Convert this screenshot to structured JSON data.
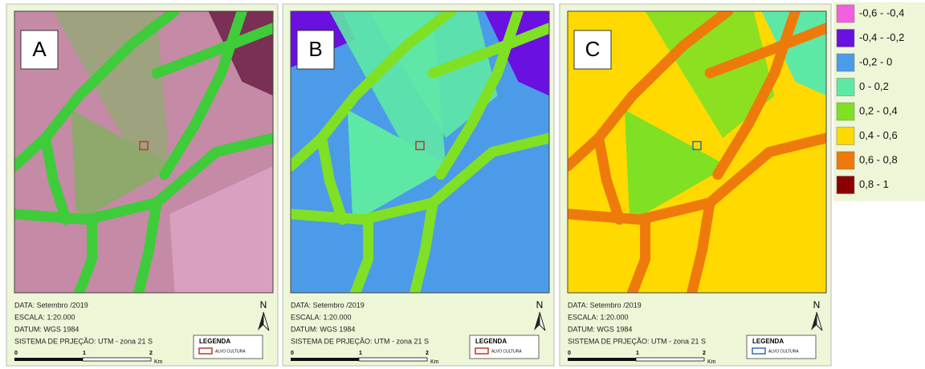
{
  "panels": [
    {
      "label": "A",
      "date": "DATA: Setembro /2019",
      "scale_text": "ESCALA: 1:20.000",
      "datum": "DATUM: WGS 1984",
      "projection": "SISTEMA DE PRJEÇÃO: UTM - zona 21 S",
      "north": "N",
      "legend_title": "LEGENDA",
      "legend_item": "ALVO CULTURA",
      "scale_ticks": [
        "0",
        "1",
        "2"
      ],
      "scale_unit": "Km",
      "target_color": "#c0392b"
    },
    {
      "label": "B",
      "date": "DATA: Setembro /2019",
      "scale_text": "ESCALA: 1:20.000",
      "datum": "DATUM: WGS 1984",
      "projection": "SISTEMA DE PRJEÇÃO: UTM - zona 21 S",
      "north": "N",
      "legend_title": "LEGENDA",
      "legend_item": "ALVO CULTURA",
      "scale_ticks": [
        "0",
        "1",
        "2"
      ],
      "scale_unit": "Km",
      "target_color": "#c0392b"
    },
    {
      "label": "C",
      "date": "DATA: Setembro /2019",
      "scale_text": "ESCALA: 1:20.000",
      "datum": "DATUM: WGS 1984",
      "projection": "SISTEMA DE PRJEÇÃO: UTM - zona 21 S",
      "north": "N",
      "legend_title": "LEGENDA",
      "legend_item": "ALVO CULTURA",
      "scale_ticks": [
        "0",
        "1",
        "2"
      ],
      "scale_unit": "Km",
      "target_color": "#2e6fb5"
    }
  ],
  "legend": [
    {
      "label": "-0,6 - -0,4",
      "color": "#f25fdf"
    },
    {
      "label": "-0,4 - -0,2",
      "color": "#6a10e0"
    },
    {
      "label": "-0,2 - 0",
      "color": "#4c9be8"
    },
    {
      "label": "0 - 0,2",
      "color": "#5ee8a6"
    },
    {
      "label": "0,2 - 0,4",
      "color": "#80e024"
    },
    {
      "label": "0,4 - 0,6",
      "color": "#ffd900"
    },
    {
      "label": "0,6 - 0,8",
      "color": "#ef7a0c"
    },
    {
      "label": "0,8 - 1",
      "color": "#8b0000"
    }
  ]
}
